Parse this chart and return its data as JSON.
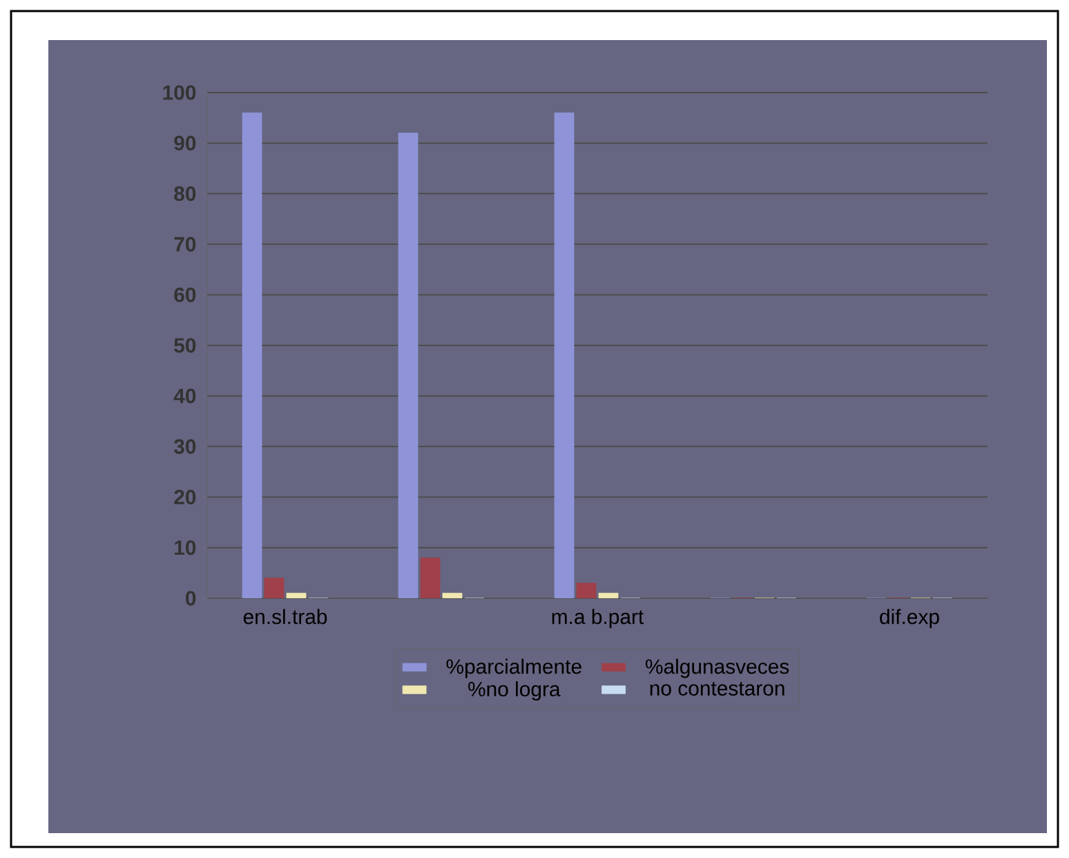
{
  "chart_data": {
    "type": "bar",
    "categories": [
      "en.sl.trab",
      null,
      "m.a b.part",
      null,
      "dif.exp"
    ],
    "series": [
      {
        "name": "%parcialmente",
        "color": "#8f94d8",
        "values": [
          96,
          92,
          96,
          0,
          0
        ]
      },
      {
        "name": "%algunasveces",
        "color": "#a0404a",
        "values": [
          4,
          8,
          3,
          0,
          0
        ]
      },
      {
        "name": "%no logra",
        "color": "#f0e8b0",
        "values": [
          1,
          1,
          1,
          0,
          0
        ]
      },
      {
        "name": "no contestaron",
        "color": "#c8dcf0",
        "values": [
          0,
          0,
          0,
          0,
          0
        ]
      }
    ],
    "ylim": [
      0,
      100
    ],
    "yticks": [
      0,
      10,
      20,
      30,
      40,
      50,
      60,
      70,
      80,
      90,
      100
    ],
    "grid": "y",
    "legend": "bottom"
  }
}
